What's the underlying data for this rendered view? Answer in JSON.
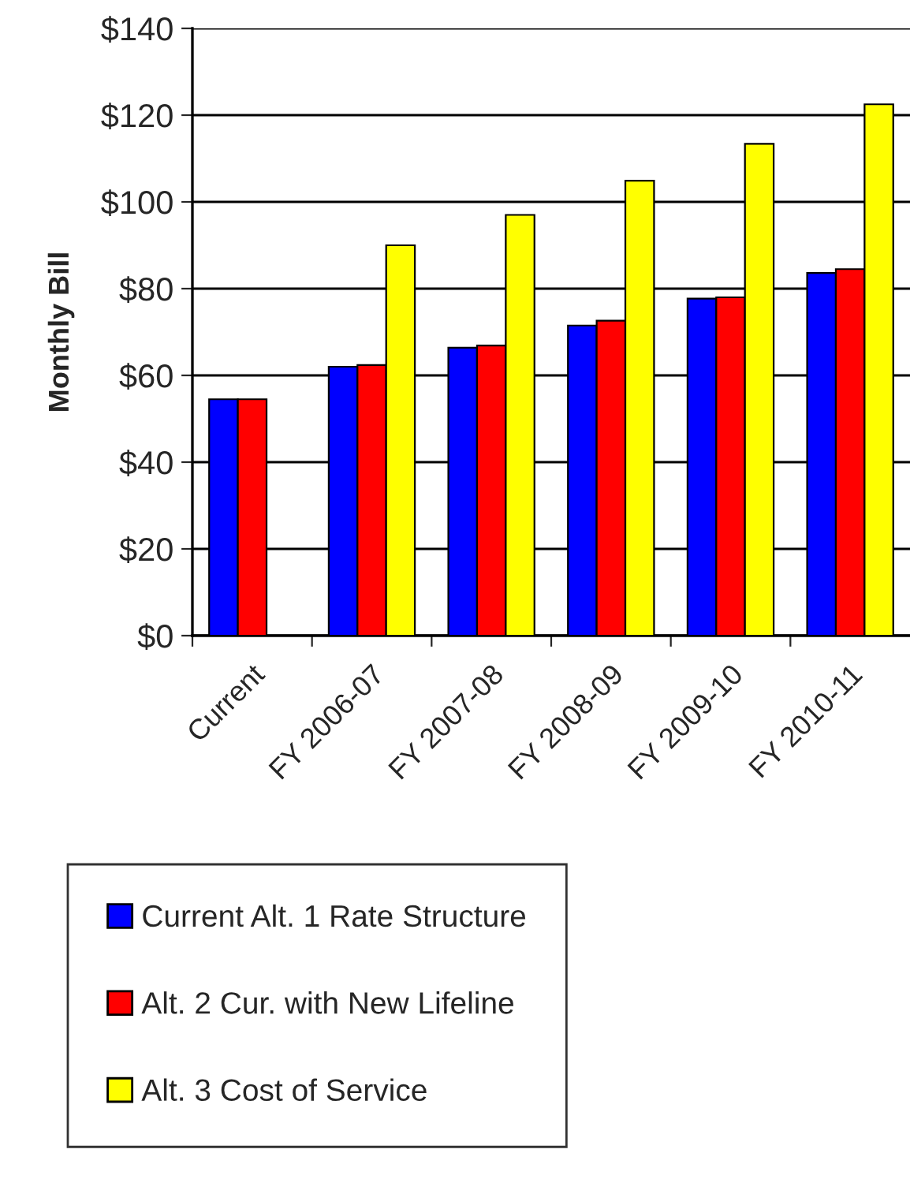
{
  "chart_data": {
    "type": "bar",
    "ylabel": "Monthly Bill",
    "categories": [
      "Current",
      "FY 2006-07",
      "FY 2007-08",
      "FY 2008-09",
      "FY 2009-10",
      "FY 2010-11"
    ],
    "series": [
      {
        "name": "Current Alt. 1 Rate Structure",
        "color": "#0000ff",
        "values": [
          54.5,
          62.0,
          66.4,
          71.5,
          77.7,
          83.6
        ]
      },
      {
        "name": "Alt. 2 Cur. with New Lifeline",
        "color": "#ff0000",
        "values": [
          54.5,
          62.4,
          66.9,
          72.6,
          78.0,
          84.5
        ]
      },
      {
        "name": "Alt. 3 Cost of Service",
        "color": "#ffff00",
        "values": [
          null,
          90.0,
          97.0,
          104.9,
          113.4,
          122.5
        ]
      }
    ],
    "ylim": [
      0,
      140
    ],
    "yticks": [
      {
        "value": 0,
        "label": "$0"
      },
      {
        "value": 20,
        "label": "$20"
      },
      {
        "value": 40,
        "label": "$40"
      },
      {
        "value": 60,
        "label": "$60"
      },
      {
        "value": 80,
        "label": "$80"
      },
      {
        "value": 100,
        "label": "$100"
      },
      {
        "value": 120,
        "label": "$120"
      },
      {
        "value": 140,
        "label": "$140"
      }
    ],
    "grid": "y",
    "legend": "bottom"
  }
}
